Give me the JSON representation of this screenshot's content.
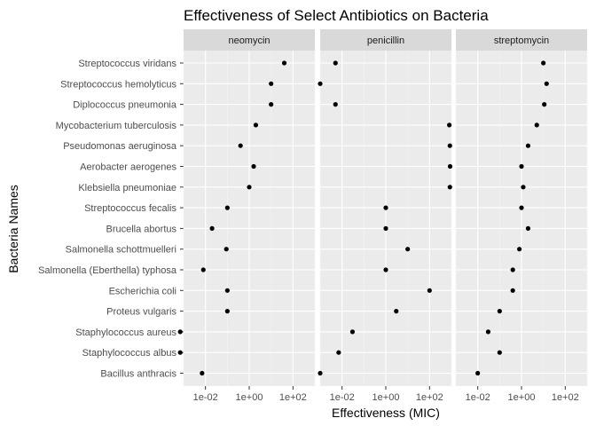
{
  "chart_data": {
    "type": "scatter",
    "title": "Effectiveness of Select Antibiotics on Bacteria",
    "xlabel": "Effectiveness (MIC)",
    "ylabel": "Bacteria Names",
    "x_scale": "log10",
    "xlim": [
      0.001,
      1000
    ],
    "x_ticks": [
      {
        "value": 0.01,
        "label": "1e-02"
      },
      {
        "value": 1,
        "label": "1e+00"
      },
      {
        "value": 100,
        "label": "1e+02"
      }
    ],
    "grid": true,
    "bacteria": [
      "Streptococcus viridans",
      "Streptococcus hemolyticus",
      "Diplococcus pneumonia",
      "Mycobacterium tuberculosis",
      "Pseudomonas aeruginosa",
      "Aerobacter aerogenes",
      "Klebsiella pneumoniae",
      "Streptococcus fecalis",
      "Brucella abortus",
      "Salmonella schottmuelleri",
      "Salmonella (Eberthella) typhosa",
      "Escherichia coli",
      "Proteus vulgaris",
      "Staphylococcus aureus",
      "Staphylococcus albus",
      "Bacillus anthracis"
    ],
    "panels": [
      {
        "name": "neomycin",
        "values": [
          40,
          10,
          10,
          2,
          0.4,
          1.6,
          1,
          0.1,
          0.02,
          0.09,
          0.008,
          0.1,
          0.1,
          0.0007,
          0.0007,
          0.007
        ]
      },
      {
        "name": "penicillin",
        "values": [
          0.005,
          0.001,
          0.005,
          800,
          850,
          870,
          850,
          1,
          1,
          10,
          1,
          100,
          3,
          0.03,
          0.007,
          0.001
        ]
      },
      {
        "name": "streptomycin",
        "values": [
          10,
          14,
          11,
          5,
          2,
          1,
          1.2,
          1,
          2,
          0.8,
          0.4,
          0.4,
          0.1,
          0.03,
          0.1,
          0.01
        ]
      }
    ]
  }
}
